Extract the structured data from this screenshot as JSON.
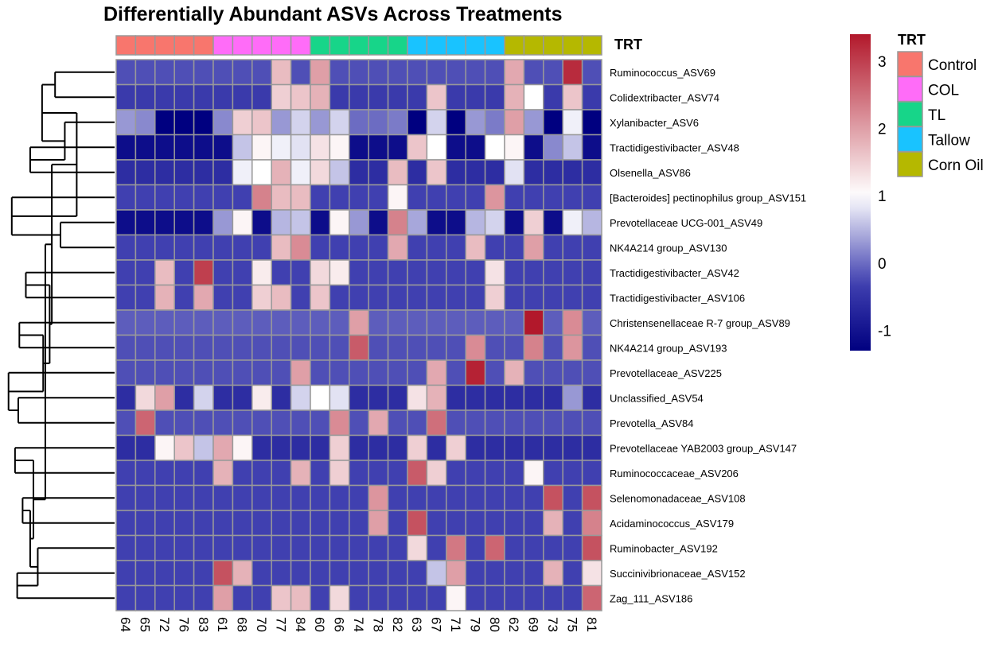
{
  "chart_data": {
    "type": "heatmap",
    "title": "Differentially Abundant ASVs Across Treatments",
    "annotation_label": "TRT",
    "samples": [
      "64",
      "65",
      "72",
      "76",
      "83",
      "61",
      "68",
      "70",
      "77",
      "84",
      "60",
      "66",
      "74",
      "78",
      "82",
      "63",
      "67",
      "71",
      "79",
      "80",
      "62",
      "69",
      "73",
      "75",
      "81"
    ],
    "sample_groups": [
      "Control",
      "Control",
      "Control",
      "Control",
      "Control",
      "COL",
      "COL",
      "COL",
      "COL",
      "COL",
      "TL",
      "TL",
      "TL",
      "TL",
      "TL",
      "Tallow",
      "Tallow",
      "Tallow",
      "Tallow",
      "Tallow",
      "Corn Oil",
      "Corn Oil",
      "Corn Oil",
      "Corn Oil",
      "Corn Oil"
    ],
    "treatments": [
      {
        "name": "Control",
        "color": "#F8766D"
      },
      {
        "name": "COL",
        "color": "#FF6CF8"
      },
      {
        "name": "TL",
        "color": "#17D589"
      },
      {
        "name": "Tallow",
        "color": "#19C3FF"
      },
      {
        "name": "Corn Oil",
        "color": "#B5B800"
      }
    ],
    "rows": [
      "Ruminococcus_ASV69",
      "Colidextribacter_ASV74",
      "Xylanibacter_ASV6",
      "Tractidigestivibacter_ASV48",
      "Olsenella_ASV86",
      "[Bacteroides] pectinophilus group_ASV151",
      "Prevotellaceae UCG-001_ASV49",
      "NK4A214 group_ASV130",
      "Tractidigestivibacter_ASV42",
      "Tractidigestivibacter_ASV106",
      "Christensenellaceae R-7 group_ASV89",
      "NK4A214 group_ASV193",
      "Prevotellaceae_ASV225",
      "Unclassified_ASV54",
      "Prevotella_ASV84",
      "Prevotellaceae YAB2003 group_ASV147",
      "Ruminococcaceae_ASV206",
      "Selenomonadaceae_ASV108",
      "Acidaminococcus_ASV179",
      "Ruminobacter_ASV192",
      "Succinivibrionaceae_ASV152",
      "Zag_111_ASV186"
    ],
    "values": [
      [
        -0.2,
        -0.2,
        -0.2,
        -0.2,
        -0.2,
        -0.2,
        -0.2,
        -0.2,
        1.7,
        -0.2,
        2.0,
        -0.2,
        -0.2,
        -0.2,
        -0.2,
        -0.2,
        -0.2,
        -0.2,
        -0.2,
        -0.2,
        1.9,
        -0.2,
        -0.2,
        3.2,
        -0.2
      ],
      [
        -0.4,
        -0.4,
        -0.4,
        -0.4,
        -0.4,
        -0.4,
        -0.4,
        -0.4,
        1.5,
        1.6,
        1.8,
        -0.4,
        -0.4,
        -0.4,
        -0.4,
        -0.4,
        1.6,
        -0.4,
        -0.4,
        -0.4,
        1.8,
        1.0,
        -0.4,
        1.6,
        -0.4
      ],
      [
        0.3,
        0.2,
        -1.3,
        -1.3,
        -1.3,
        0.2,
        1.5,
        1.6,
        0.3,
        0.7,
        0.3,
        0.7,
        0.0,
        0.0,
        0.1,
        -1.3,
        0.7,
        -1.3,
        0.3,
        0.1,
        2.0,
        0.3,
        -1.3,
        0.9,
        -1.3
      ],
      [
        -1.1,
        -1.1,
        -1.1,
        -1.1,
        -1.1,
        -1.1,
        0.6,
        1.1,
        0.9,
        0.8,
        1.3,
        1.1,
        -1.1,
        -1.1,
        -1.1,
        1.6,
        1.0,
        -1.1,
        -1.1,
        1.0,
        1.1,
        -1.1,
        0.2,
        0.6,
        -1.1
      ],
      [
        -0.6,
        -0.6,
        -0.6,
        -0.6,
        -0.6,
        -0.6,
        0.9,
        1.0,
        1.8,
        0.9,
        1.4,
        0.6,
        -0.6,
        -0.6,
        1.7,
        -0.6,
        1.6,
        -0.6,
        -0.6,
        -0.6,
        0.8,
        -0.6,
        -0.6,
        -0.6,
        -0.6
      ],
      [
        -0.3,
        -0.3,
        -0.3,
        -0.3,
        -0.3,
        -0.3,
        -0.3,
        2.3,
        1.7,
        1.7,
        -0.3,
        -0.3,
        -0.3,
        -0.3,
        1.1,
        -0.3,
        -0.3,
        -0.3,
        -0.3,
        2.1,
        -0.3,
        -0.3,
        -0.3,
        -0.3,
        -0.3
      ],
      [
        -1.1,
        -1.1,
        -1.1,
        -1.1,
        -1.1,
        0.3,
        1.1,
        -1.1,
        0.5,
        0.6,
        -1.1,
        1.1,
        0.3,
        -1.1,
        2.3,
        0.4,
        -1.1,
        -1.1,
        0.5,
        0.7,
        -1.1,
        1.5,
        -1.1,
        0.9,
        0.5
      ],
      [
        -0.3,
        -0.3,
        -0.3,
        -0.3,
        -0.3,
        -0.3,
        -0.3,
        -0.3,
        1.7,
        2.2,
        -0.3,
        -0.3,
        -0.3,
        -0.3,
        1.9,
        -0.3,
        -0.3,
        -0.3,
        1.7,
        -0.3,
        -0.3,
        2.0,
        -0.3,
        -0.3,
        -0.3
      ],
      [
        -0.3,
        -0.3,
        1.7,
        -0.3,
        3.0,
        -0.3,
        -0.3,
        1.2,
        -0.3,
        -0.3,
        1.4,
        1.2,
        -0.3,
        -0.3,
        -0.3,
        -0.3,
        -0.3,
        -0.3,
        -0.3,
        1.3,
        -0.3,
        -0.3,
        -0.3,
        -0.3,
        -0.3
      ],
      [
        -0.3,
        -0.3,
        1.8,
        -0.3,
        1.9,
        -0.3,
        -0.3,
        1.5,
        1.7,
        -0.3,
        1.6,
        -0.3,
        -0.3,
        -0.3,
        -0.3,
        -0.3,
        -0.3,
        -0.3,
        -0.3,
        1.5,
        -0.3,
        -0.3,
        -0.3,
        -0.3,
        -0.3
      ],
      [
        -0.1,
        -0.1,
        -0.1,
        -0.1,
        -0.1,
        -0.1,
        -0.1,
        -0.1,
        -0.1,
        -0.1,
        -0.1,
        -0.1,
        2.0,
        -0.1,
        -0.1,
        -0.1,
        -0.1,
        -0.1,
        -0.1,
        -0.1,
        -0.1,
        3.4,
        -0.1,
        2.2,
        -0.1
      ],
      [
        -0.2,
        -0.2,
        -0.2,
        -0.2,
        -0.2,
        -0.2,
        -0.2,
        -0.2,
        -0.2,
        -0.2,
        -0.2,
        -0.2,
        2.7,
        -0.2,
        -0.2,
        -0.2,
        -0.2,
        -0.2,
        2.2,
        -0.2,
        -0.2,
        2.3,
        -0.2,
        2.1,
        -0.2
      ],
      [
        -0.2,
        -0.2,
        -0.2,
        -0.2,
        -0.2,
        -0.2,
        -0.2,
        -0.2,
        -0.2,
        2.0,
        -0.2,
        -0.2,
        -0.2,
        -0.2,
        -0.2,
        -0.2,
        1.9,
        -0.2,
        3.3,
        -0.2,
        1.8,
        -0.2,
        -0.2,
        -0.2,
        -0.2
      ],
      [
        -0.6,
        1.4,
        2.0,
        -0.6,
        0.7,
        -0.6,
        -0.6,
        1.2,
        -0.6,
        0.7,
        1.0,
        0.8,
        -0.6,
        -0.6,
        -0.6,
        1.3,
        1.8,
        -0.6,
        -0.6,
        -0.6,
        -0.6,
        -0.6,
        -0.6,
        0.3,
        -0.6
      ],
      [
        -0.2,
        2.6,
        -0.2,
        -0.2,
        -0.2,
        -0.2,
        -0.2,
        -0.2,
        -0.2,
        -0.2,
        -0.2,
        2.2,
        -0.2,
        1.9,
        -0.2,
        -0.2,
        2.5,
        -0.2,
        -0.2,
        -0.2,
        -0.2,
        -0.2,
        -0.2,
        -0.2,
        -0.2
      ],
      [
        -0.6,
        -0.6,
        1.1,
        1.6,
        0.6,
        1.9,
        1.1,
        -0.6,
        -0.6,
        -0.6,
        -0.6,
        1.5,
        -0.6,
        -0.6,
        -0.6,
        1.5,
        -0.6,
        1.5,
        -0.6,
        -0.6,
        -0.6,
        -0.6,
        -0.6,
        -0.6,
        -0.6
      ],
      [
        -0.3,
        -0.3,
        -0.3,
        -0.3,
        -0.3,
        1.8,
        -0.3,
        -0.3,
        -0.3,
        1.8,
        -0.3,
        1.5,
        -0.3,
        -0.3,
        -0.3,
        2.7,
        1.5,
        -0.3,
        -0.3,
        -0.3,
        -0.3,
        1.1,
        -0.3,
        -0.3,
        -0.3
      ],
      [
        -0.3,
        -0.3,
        -0.3,
        -0.3,
        -0.3,
        -0.3,
        -0.3,
        -0.3,
        -0.3,
        -0.3,
        -0.3,
        -0.3,
        -0.3,
        2.1,
        -0.3,
        -0.3,
        -0.3,
        -0.3,
        -0.3,
        -0.3,
        -0.3,
        -0.3,
        2.8,
        -0.3,
        2.8
      ],
      [
        -0.3,
        -0.3,
        -0.3,
        -0.3,
        -0.3,
        -0.3,
        -0.3,
        -0.3,
        -0.3,
        -0.3,
        -0.3,
        -0.3,
        -0.3,
        2.0,
        -0.3,
        2.8,
        -0.3,
        -0.3,
        -0.3,
        -0.3,
        -0.3,
        -0.3,
        1.8,
        -0.3,
        2.3
      ],
      [
        -0.3,
        -0.3,
        -0.3,
        -0.3,
        -0.3,
        -0.3,
        -0.3,
        -0.3,
        -0.3,
        -0.3,
        -0.3,
        -0.3,
        -0.3,
        -0.3,
        -0.3,
        1.4,
        -0.3,
        2.4,
        -0.3,
        2.6,
        -0.3,
        -0.3,
        -0.3,
        -0.3,
        2.8
      ],
      [
        -0.3,
        -0.3,
        -0.3,
        -0.3,
        -0.3,
        2.8,
        1.8,
        -0.3,
        -0.3,
        -0.3,
        -0.3,
        -0.3,
        -0.3,
        -0.3,
        -0.3,
        -0.3,
        0.6,
        2.0,
        -0.3,
        -0.3,
        -0.3,
        -0.3,
        1.8,
        -0.3,
        1.3
      ],
      [
        -0.3,
        -0.3,
        -0.3,
        -0.3,
        -0.3,
        2.0,
        -0.3,
        -0.3,
        1.6,
        1.7,
        -0.3,
        1.4,
        -0.3,
        -0.3,
        -0.3,
        -0.3,
        -0.3,
        1.1,
        -0.3,
        -0.3,
        -0.3,
        -0.3,
        -0.3,
        -0.3,
        2.6
      ]
    ],
    "color_scale": {
      "min": -1.3,
      "max": 3.4,
      "ticks": [
        -1,
        0,
        1,
        2,
        3
      ],
      "colors": {
        "low": "#000080",
        "mid_low": "#4040B0",
        "mid": "#FFFFFF",
        "high": "#B2182B"
      }
    },
    "cell_border_color": "#999999",
    "dendrogram": "rows"
  }
}
